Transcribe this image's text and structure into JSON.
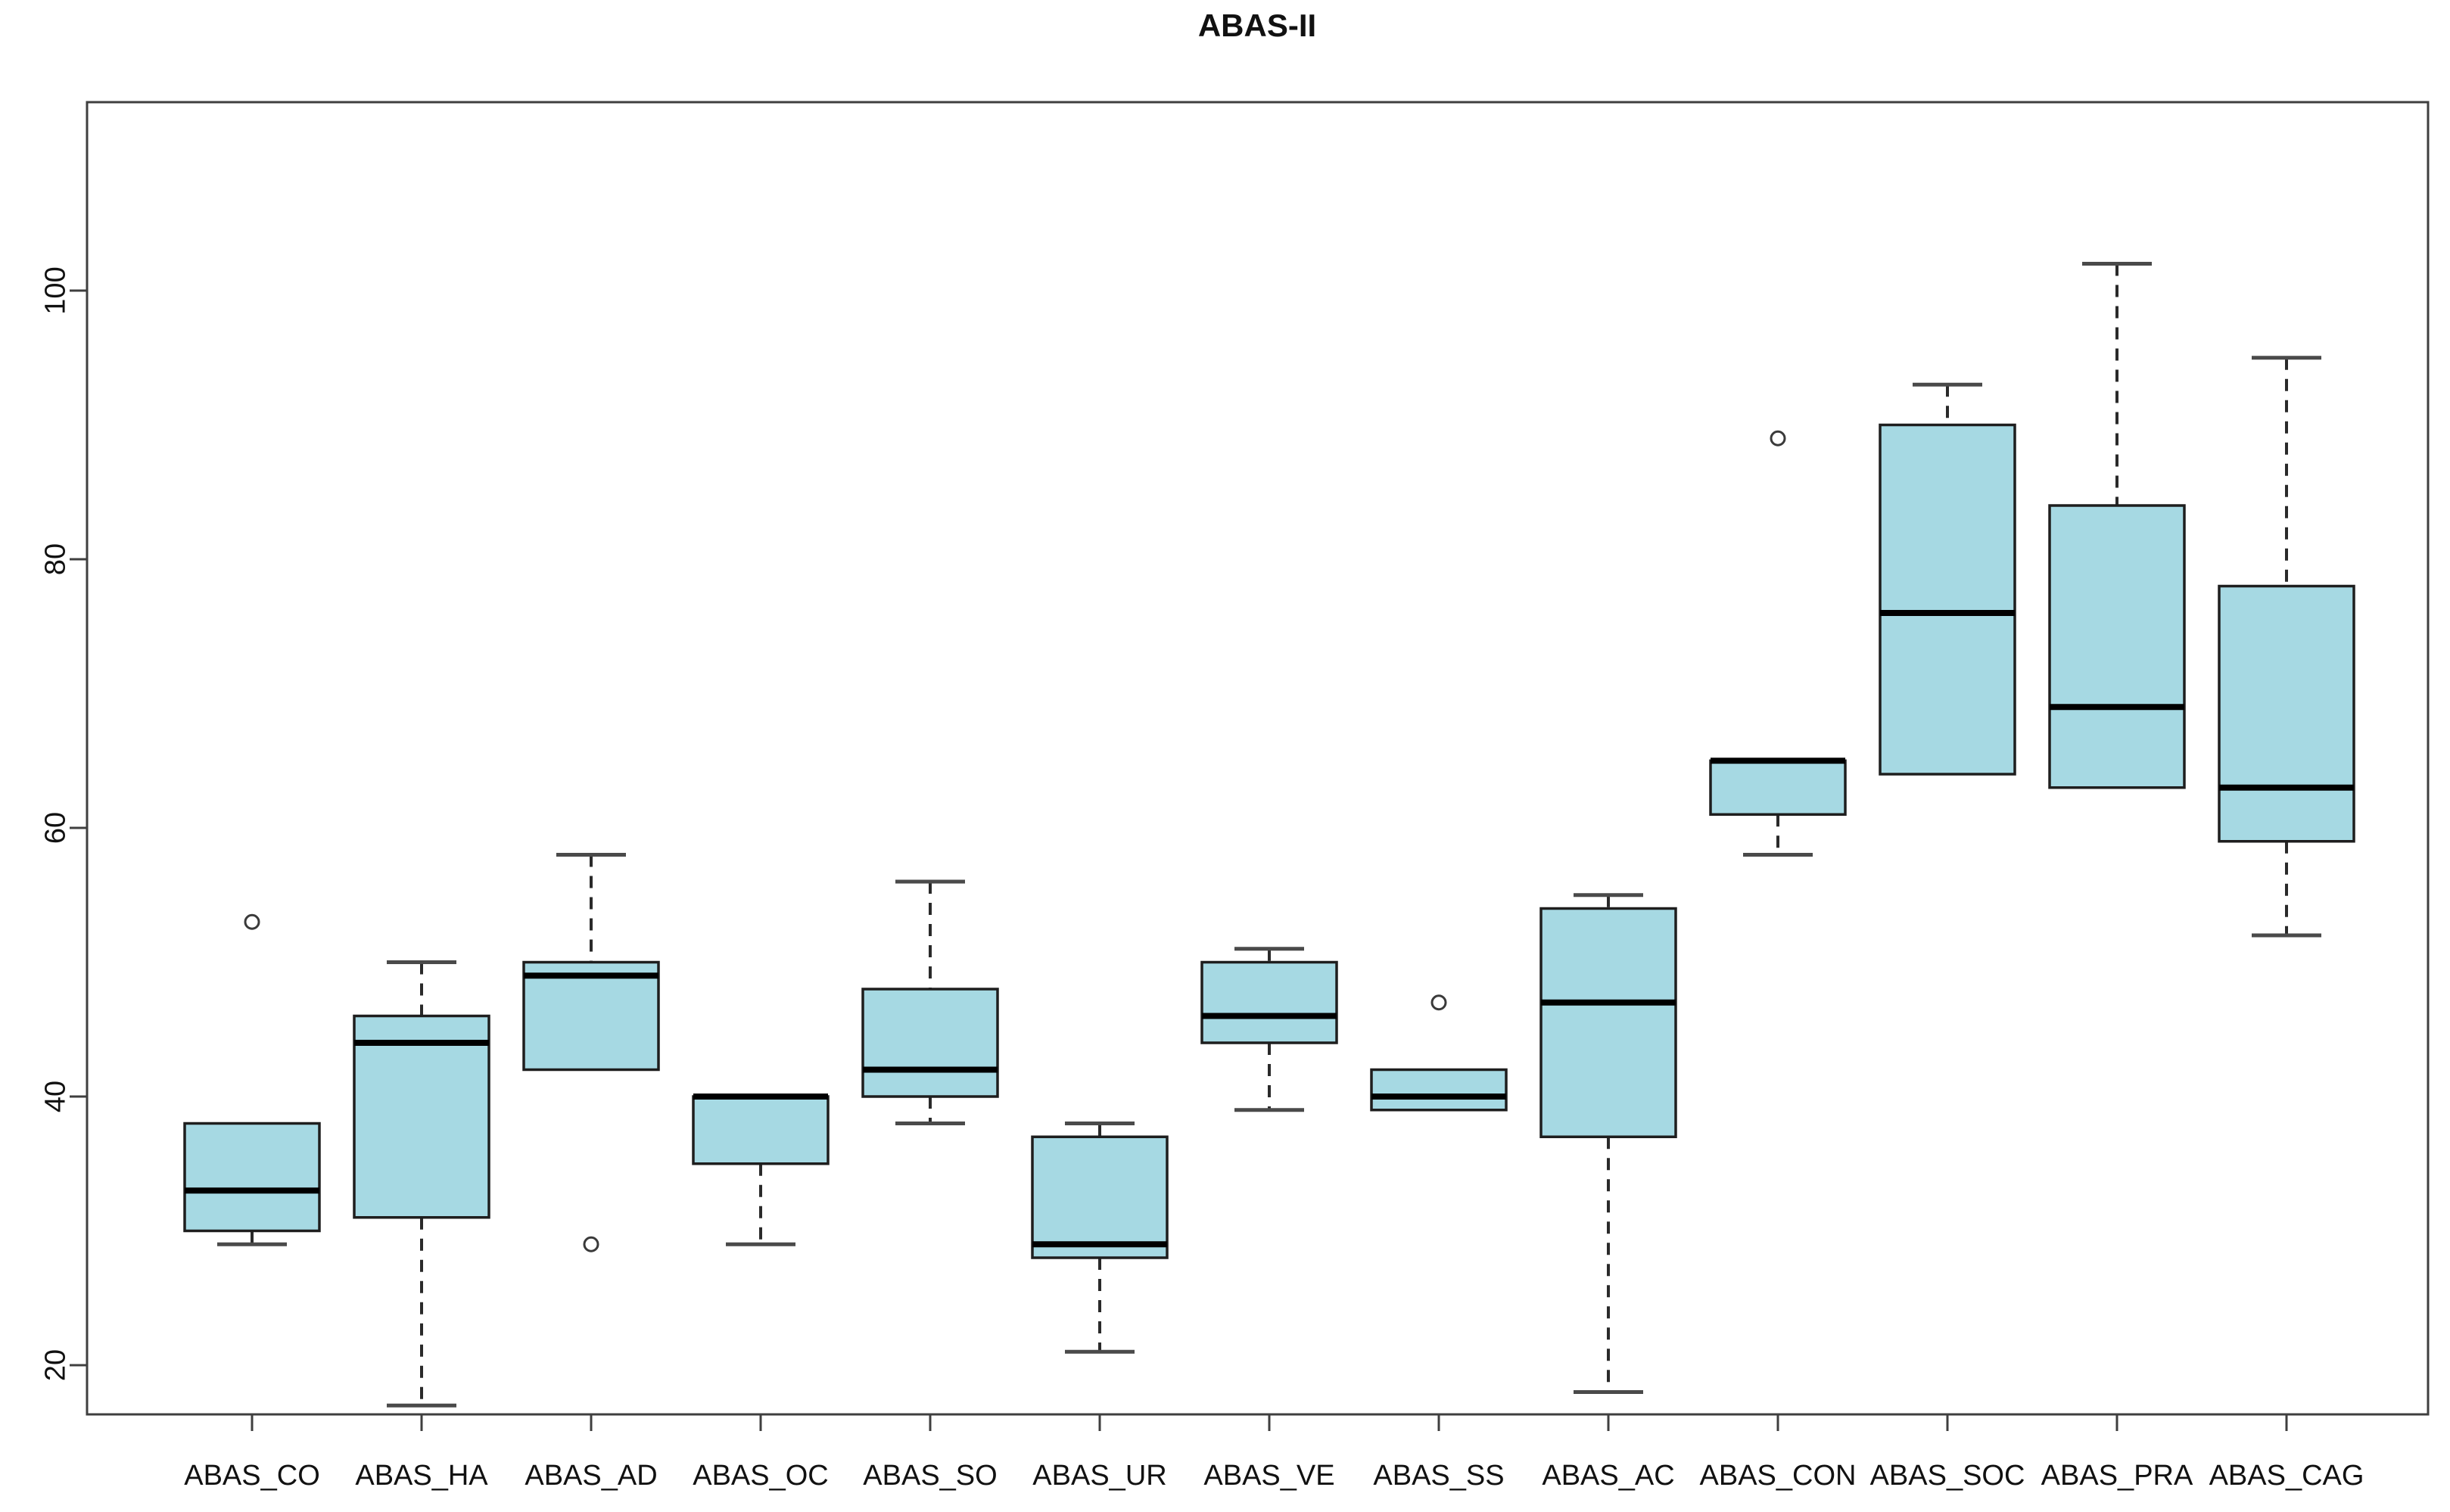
{
  "page": {
    "background": "#ffffff"
  },
  "chart_data": {
    "type": "boxplot",
    "title": "ABAS-II",
    "xlabel": "",
    "ylabel": "",
    "legend": null,
    "grid": false,
    "y_axis": {
      "ticks": [
        20,
        40,
        60,
        80,
        100
      ],
      "min": 16,
      "max": 114
    },
    "categories": [
      "ABAS_CO",
      "ABAS_HA",
      "ABAS_AD",
      "ABAS_OC",
      "ABAS_SO",
      "ABAS_UR",
      "ABAS_VE",
      "ABAS_SS",
      "ABAS_AC",
      "ABAS_CON",
      "ABAS_SOC",
      "ABAS_PRA",
      "ABAS_CAG"
    ],
    "series": [
      {
        "label": "ABAS_CO",
        "whisker_low": 29,
        "q1": 30,
        "median": 33,
        "q3": 38,
        "whisker_high": 38,
        "outliers": [
          53
        ]
      },
      {
        "label": "ABAS_HA",
        "whisker_low": 17,
        "q1": 31,
        "median": 44,
        "q3": 46,
        "whisker_high": 50,
        "outliers": []
      },
      {
        "label": "ABAS_AD",
        "whisker_low": 42,
        "q1": 42,
        "median": 49,
        "q3": 50,
        "whisker_high": 58,
        "outliers": [
          29
        ]
      },
      {
        "label": "ABAS_OC",
        "whisker_low": 29,
        "q1": 35,
        "median": 40,
        "q3": 40,
        "whisker_high": 40,
        "outliers": []
      },
      {
        "label": "ABAS_SO",
        "whisker_low": 38,
        "q1": 40,
        "median": 42,
        "q3": 48,
        "whisker_high": 56,
        "outliers": []
      },
      {
        "label": "ABAS_UR",
        "whisker_low": 21,
        "q1": 28,
        "median": 29,
        "q3": 37,
        "whisker_high": 38,
        "outliers": []
      },
      {
        "label": "ABAS_VE",
        "whisker_low": 39,
        "q1": 44,
        "median": 46,
        "q3": 50,
        "whisker_high": 51,
        "outliers": []
      },
      {
        "label": "ABAS_SS",
        "whisker_low": 39,
        "q1": 39,
        "median": 40,
        "q3": 42,
        "whisker_high": 42,
        "outliers": [
          47
        ]
      },
      {
        "label": "ABAS_AC",
        "whisker_low": 18,
        "q1": 37,
        "median": 47,
        "q3": 54,
        "whisker_high": 55,
        "outliers": []
      },
      {
        "label": "ABAS_CON",
        "whisker_low": 58,
        "q1": 61,
        "median": 65,
        "q3": 65,
        "whisker_high": 65,
        "outliers": [
          89
        ]
      },
      {
        "label": "ABAS_SOC",
        "whisker_low": 64,
        "q1": 64,
        "median": 76,
        "q3": 90,
        "whisker_high": 93,
        "outliers": []
      },
      {
        "label": "ABAS_PRA",
        "whisker_low": 63,
        "q1": 63,
        "median": 69,
        "q3": 84,
        "whisker_high": 102,
        "outliers": []
      },
      {
        "label": "ABAS_CAG",
        "whisker_low": 52,
        "q1": 59,
        "median": 63,
        "q3": 78,
        "whisker_high": 95,
        "outliers": []
      }
    ],
    "style": {
      "box_fill": "#a6d9e3",
      "box_border": "#1e1e1e",
      "median_color": "#000000",
      "whisker_color": "#2a2a2a",
      "cap_color": "#4a4a4a",
      "outlier_stroke": "#3a3a3a",
      "outlier_fill": "#ffffff",
      "axis_color": "#3f3f3f",
      "text_color": "#111111",
      "background": "#ffffff"
    }
  }
}
